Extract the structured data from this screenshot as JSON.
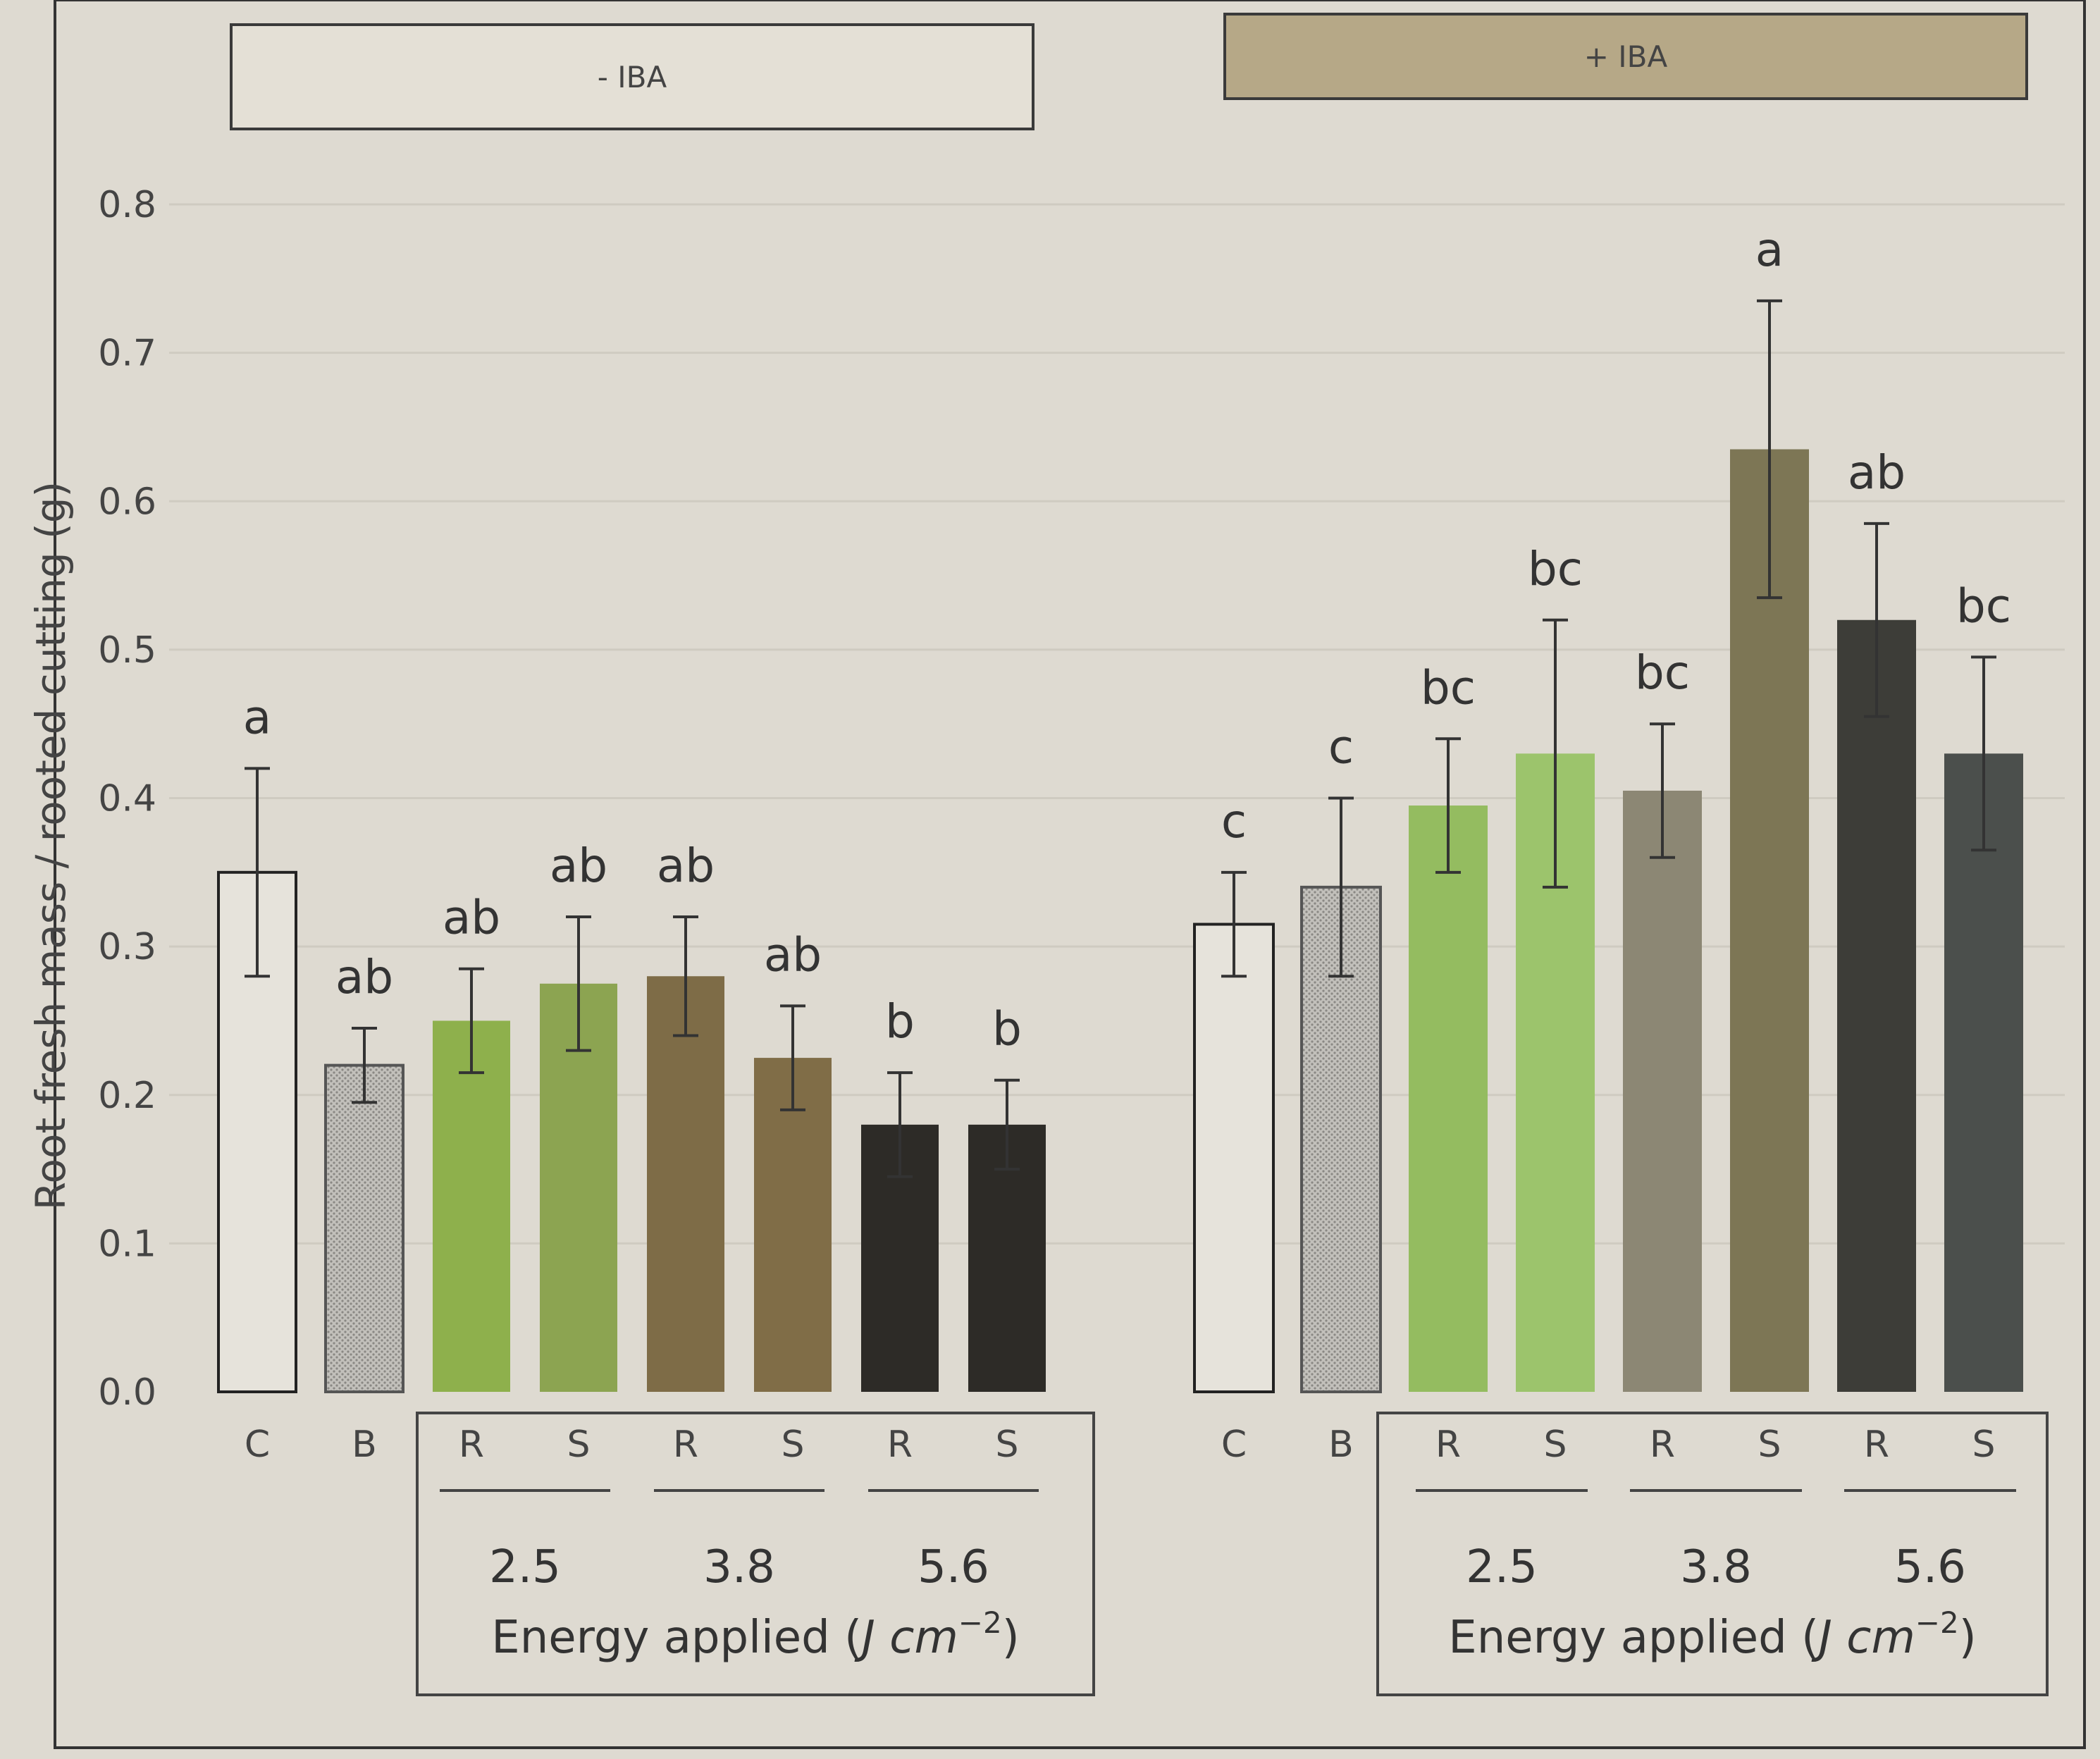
{
  "chart_data": {
    "type": "bar",
    "ylabel": "Root fresh mass / rooted cutting (g)",
    "ylim": [
      0,
      0.8
    ],
    "yticks": [
      "0.0",
      "0.1",
      "0.2",
      "0.3",
      "0.4",
      "0.5",
      "0.6",
      "0.7",
      "0.8"
    ],
    "energy_title": "Energy applied (",
    "energy_unit": "J cm",
    "energy_exp": "−2",
    "energy_close": ")",
    "panels": [
      {
        "title": "- IBA",
        "header_color": "#e4e0d6",
        "categories": [
          "C",
          "B",
          "R",
          "S",
          "R",
          "S",
          "R",
          "S"
        ],
        "energy_levels": [
          "2.5",
          "3.8",
          "5.6"
        ],
        "values": [
          0.35,
          0.22,
          0.25,
          0.275,
          0.28,
          0.225,
          0.18,
          0.18
        ],
        "errors": [
          0.07,
          0.025,
          0.035,
          0.045,
          0.04,
          0.035,
          0.035,
          0.03
        ],
        "letters": [
          "a",
          "ab",
          "ab",
          "ab",
          "ab",
          "ab",
          "b",
          "b"
        ],
        "colors": [
          "#e6e3db",
          "#b4b2ad",
          "#8eb04c",
          "#8ca451",
          "#7e6c47",
          "#806d47",
          "#2d2b27",
          "#2d2b27"
        ]
      },
      {
        "title": "+ IBA",
        "header_color": "#b6a887",
        "categories": [
          "C",
          "B",
          "R",
          "S",
          "R",
          "S",
          "R",
          "S"
        ],
        "energy_levels": [
          "2.5",
          "3.8",
          "5.6"
        ],
        "values": [
          0.315,
          0.34,
          0.395,
          0.43,
          0.405,
          0.635,
          0.52,
          0.43
        ],
        "errors": [
          0.035,
          0.06,
          0.045,
          0.09,
          0.045,
          0.1,
          0.065,
          0.065
        ],
        "letters": [
          "c",
          "c",
          "bc",
          "bc",
          "bc",
          "a",
          "ab",
          "bc"
        ],
        "colors": [
          "#e6e3db",
          "#b4b4b1",
          "#94bc60",
          "#9cc46c",
          "#8c8774",
          "#7d7655",
          "#3d3d38",
          "#4b4f4c"
        ]
      }
    ]
  }
}
